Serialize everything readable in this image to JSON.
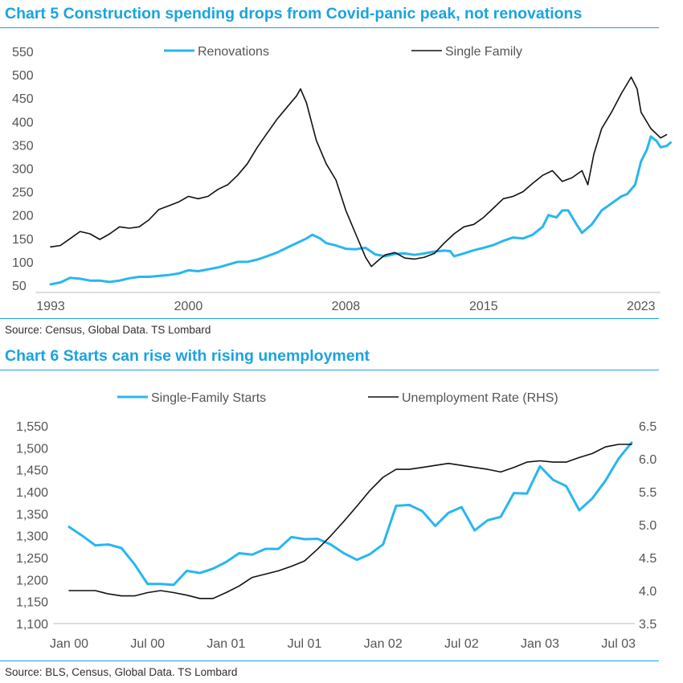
{
  "chart5": {
    "title": "Chart 5 Construction spending drops from Covid-panic peak, not renovations",
    "source": "Source: Census, Global Data. TS Lombard"
  },
  "chart6": {
    "title": "Chart 6 Starts can rise with rising unemployment",
    "source": "Source: BLS, Census, Global Data. TS Lombard"
  },
  "colors": {
    "accent": "#1aa3e0",
    "renovations": "#29b6f0",
    "black_series": "#111111"
  },
  "chart_data": [
    {
      "type": "line",
      "title": "Chart 5 Construction spending drops from Covid-panic peak, not renovations",
      "xlabel": "",
      "ylabel": "",
      "xlim": [
        1993,
        2023.5
      ],
      "ylim": [
        50,
        550
      ],
      "x_ticks": [
        1993,
        2000,
        2008,
        2015,
        2023
      ],
      "x_tick_labels": [
        "1993",
        "2000",
        "2008",
        "2015",
        "2023"
      ],
      "y_ticks": [
        50,
        100,
        150,
        200,
        250,
        300,
        350,
        400,
        450,
        500,
        550
      ],
      "y_tick_labels": [
        "50",
        "100",
        "150",
        "200",
        "250",
        "300",
        "350",
        "400",
        "450",
        "500",
        "550"
      ],
      "legend": "top",
      "grid": false,
      "series": [
        {
          "name": "Renovations",
          "color": "#29b6f0",
          "points": [
            [
              1993.0,
              52
            ],
            [
              1993.5,
              56
            ],
            [
              1994.0,
              66
            ],
            [
              1994.5,
              64
            ],
            [
              1995.0,
              60
            ],
            [
              1995.5,
              60
            ],
            [
              1996.0,
              57
            ],
            [
              1996.5,
              60
            ],
            [
              1997.0,
              65
            ],
            [
              1997.5,
              68
            ],
            [
              1998.0,
              68
            ],
            [
              1998.5,
              70
            ],
            [
              1999.0,
              72
            ],
            [
              1999.5,
              75
            ],
            [
              2000.0,
              82
            ],
            [
              2000.5,
              80
            ],
            [
              2001.0,
              84
            ],
            [
              2001.5,
              88
            ],
            [
              2002.0,
              94
            ],
            [
              2002.5,
              100
            ],
            [
              2003.0,
              100
            ],
            [
              2003.5,
              105
            ],
            [
              2004.0,
              112
            ],
            [
              2004.5,
              120
            ],
            [
              2005.0,
              130
            ],
            [
              2005.5,
              140
            ],
            [
              2006.0,
              150
            ],
            [
              2006.3,
              158
            ],
            [
              2006.7,
              150
            ],
            [
              2007.0,
              140
            ],
            [
              2007.5,
              135
            ],
            [
              2008.0,
              128
            ],
            [
              2008.5,
              127
            ],
            [
              2009.0,
              130
            ],
            [
              2009.5,
              116
            ],
            [
              2010.0,
              112
            ],
            [
              2010.5,
              117
            ],
            [
              2011.0,
              118
            ],
            [
              2011.5,
              115
            ],
            [
              2012.0,
              118
            ],
            [
              2012.5,
              122
            ],
            [
              2013.0,
              124
            ],
            [
              2013.3,
              123
            ],
            [
              2013.5,
              112
            ],
            [
              2014.0,
              118
            ],
            [
              2014.5,
              125
            ],
            [
              2015.0,
              130
            ],
            [
              2015.5,
              136
            ],
            [
              2016.0,
              145
            ],
            [
              2016.5,
              152
            ],
            [
              2017.0,
              150
            ],
            [
              2017.5,
              158
            ],
            [
              2018.0,
              175
            ],
            [
              2018.3,
              200
            ],
            [
              2018.7,
              195
            ],
            [
              2019.0,
              210
            ],
            [
              2019.3,
              210
            ],
            [
              2019.7,
              182
            ],
            [
              2020.0,
              162
            ],
            [
              2020.5,
              180
            ],
            [
              2021.0,
              210
            ],
            [
              2021.5,
              225
            ],
            [
              2022.0,
              240
            ],
            [
              2022.3,
              245
            ],
            [
              2022.7,
              265
            ],
            [
              2023.0,
              315
            ],
            [
              2023.3,
              340
            ],
            [
              2023.5,
              368
            ],
            [
              2023.8,
              358
            ],
            [
              2024.0,
              345
            ],
            [
              2024.3,
              348
            ],
            [
              2024.5,
              355
            ]
          ]
        },
        {
          "name": "Single Family",
          "color": "#111111",
          "points": [
            [
              1993.0,
              132
            ],
            [
              1993.5,
              135
            ],
            [
              1994.0,
              150
            ],
            [
              1994.5,
              165
            ],
            [
              1995.0,
              160
            ],
            [
              1995.5,
              148
            ],
            [
              1996.0,
              160
            ],
            [
              1996.5,
              175
            ],
            [
              1997.0,
              172
            ],
            [
              1997.5,
              175
            ],
            [
              1998.0,
              190
            ],
            [
              1998.5,
              212
            ],
            [
              1999.0,
              220
            ],
            [
              1999.5,
              228
            ],
            [
              2000.0,
              240
            ],
            [
              2000.5,
              235
            ],
            [
              2001.0,
              240
            ],
            [
              2001.5,
              255
            ],
            [
              2002.0,
              265
            ],
            [
              2002.5,
              285
            ],
            [
              2003.0,
              310
            ],
            [
              2003.5,
              345
            ],
            [
              2004.0,
              375
            ],
            [
              2004.5,
              405
            ],
            [
              2005.0,
              430
            ],
            [
              2005.5,
              455
            ],
            [
              2005.7,
              470
            ],
            [
              2006.0,
              440
            ],
            [
              2006.5,
              360
            ],
            [
              2007.0,
              310
            ],
            [
              2007.5,
              275
            ],
            [
              2008.0,
              210
            ],
            [
              2008.5,
              160
            ],
            [
              2009.0,
              110
            ],
            [
              2009.3,
              90
            ],
            [
              2009.7,
              105
            ],
            [
              2010.0,
              115
            ],
            [
              2010.5,
              120
            ],
            [
              2011.0,
              108
            ],
            [
              2011.5,
              106
            ],
            [
              2012.0,
              110
            ],
            [
              2012.5,
              118
            ],
            [
              2013.0,
              140
            ],
            [
              2013.5,
              160
            ],
            [
              2014.0,
              175
            ],
            [
              2014.5,
              180
            ],
            [
              2015.0,
              195
            ],
            [
              2015.5,
              215
            ],
            [
              2016.0,
              235
            ],
            [
              2016.5,
              240
            ],
            [
              2017.0,
              250
            ],
            [
              2017.5,
              268
            ],
            [
              2018.0,
              285
            ],
            [
              2018.5,
              295
            ],
            [
              2019.0,
              272
            ],
            [
              2019.5,
              280
            ],
            [
              2020.0,
              295
            ],
            [
              2020.3,
              265
            ],
            [
              2020.6,
              330
            ],
            [
              2021.0,
              385
            ],
            [
              2021.5,
              420
            ],
            [
              2022.0,
              460
            ],
            [
              2022.5,
              495
            ],
            [
              2022.8,
              470
            ],
            [
              2023.0,
              420
            ],
            [
              2023.5,
              385
            ],
            [
              2024.0,
              365
            ],
            [
              2024.3,
              372
            ]
          ]
        }
      ]
    },
    {
      "type": "line",
      "title": "Chart 6 Starts can rise with rising unemployment",
      "xlabel": "",
      "ylabel": "",
      "x_unit": "months since Jan 2000",
      "xlim": [
        0,
        43
      ],
      "ylim": [
        1100,
        1550
      ],
      "ylim_right": [
        3.5,
        6.5
      ],
      "x_ticks": [
        0,
        6,
        12,
        18,
        24,
        30,
        36,
        42
      ],
      "x_tick_labels": [
        "Jan 00",
        "Jul 00",
        "Jan 01",
        "Jul 01",
        "Jan 02",
        "Jul 02",
        "Jan 03",
        "Jul 03"
      ],
      "y_ticks": [
        1100,
        1150,
        1200,
        1250,
        1300,
        1350,
        1400,
        1450,
        1500,
        1550
      ],
      "y_tick_labels": [
        "1,100",
        "1,150",
        "1,200",
        "1,250",
        "1,300",
        "1,350",
        "1,400",
        "1,450",
        "1,500",
        "1,550"
      ],
      "y_right_ticks": [
        3.5,
        4.0,
        4.5,
        5.0,
        5.5,
        6.0,
        6.5
      ],
      "y_right_tick_labels": [
        "3.5",
        "4.0",
        "4.5",
        "5.0",
        "5.5",
        "6.0",
        "6.5"
      ],
      "legend": "top",
      "grid": false,
      "series": [
        {
          "name": "Single-Family Starts",
          "axis": "left",
          "color": "#29b6f0",
          "points": [
            [
              0,
              1320
            ],
            [
              1,
              1300
            ],
            [
              2,
              1278
            ],
            [
              3,
              1280
            ],
            [
              4,
              1272
            ],
            [
              5,
              1235
            ],
            [
              6,
              1190
            ],
            [
              7,
              1190
            ],
            [
              8,
              1188
            ],
            [
              9,
              1220
            ],
            [
              10,
              1215
            ],
            [
              11,
              1225
            ],
            [
              12,
              1240
            ],
            [
              13,
              1260
            ],
            [
              14,
              1257
            ],
            [
              15,
              1270
            ],
            [
              16,
              1270
            ],
            [
              17,
              1297
            ],
            [
              18,
              1292
            ],
            [
              19,
              1293
            ],
            [
              20,
              1280
            ],
            [
              21,
              1260
            ],
            [
              22,
              1245
            ],
            [
              23,
              1258
            ],
            [
              24,
              1280
            ],
            [
              25,
              1368
            ],
            [
              26,
              1370
            ],
            [
              27,
              1356
            ],
            [
              28,
              1322
            ],
            [
              29,
              1352
            ],
            [
              30,
              1365
            ],
            [
              31,
              1312
            ],
            [
              32,
              1335
            ],
            [
              33,
              1343
            ],
            [
              34,
              1397
            ],
            [
              35,
              1396
            ],
            [
              36,
              1458
            ],
            [
              37,
              1427
            ],
            [
              38,
              1413
            ],
            [
              39,
              1358
            ],
            [
              40,
              1385
            ],
            [
              41,
              1425
            ],
            [
              42,
              1475
            ],
            [
              43,
              1512
            ]
          ]
        },
        {
          "name": "Unemployment Rate (RHS)",
          "axis": "right",
          "color": "#111111",
          "points": [
            [
              0,
              4.0
            ],
            [
              1,
              4.0
            ],
            [
              2,
              4.0
            ],
            [
              3,
              3.95
            ],
            [
              4,
              3.92
            ],
            [
              5,
              3.92
            ],
            [
              6,
              3.97
            ],
            [
              7,
              4.0
            ],
            [
              8,
              3.97
            ],
            [
              9,
              3.93
            ],
            [
              10,
              3.88
            ],
            [
              11,
              3.88
            ],
            [
              12,
              3.97
            ],
            [
              13,
              4.07
            ],
            [
              14,
              4.2
            ],
            [
              15,
              4.25
            ],
            [
              16,
              4.3
            ],
            [
              17,
              4.37
            ],
            [
              18,
              4.45
            ],
            [
              19,
              4.63
            ],
            [
              20,
              4.83
            ],
            [
              21,
              5.05
            ],
            [
              22,
              5.28
            ],
            [
              23,
              5.52
            ],
            [
              24,
              5.72
            ],
            [
              25,
              5.84
            ],
            [
              26,
              5.84
            ],
            [
              27,
              5.87
            ],
            [
              28,
              5.9
            ],
            [
              29,
              5.93
            ],
            [
              30,
              5.9
            ],
            [
              31,
              5.87
            ],
            [
              32,
              5.84
            ],
            [
              33,
              5.8
            ],
            [
              34,
              5.87
            ],
            [
              35,
              5.95
            ],
            [
              36,
              5.97
            ],
            [
              37,
              5.95
            ],
            [
              38,
              5.95
            ],
            [
              39,
              6.02
            ],
            [
              40,
              6.08
            ],
            [
              41,
              6.18
            ],
            [
              42,
              6.22
            ],
            [
              43,
              6.22
            ]
          ]
        }
      ]
    }
  ]
}
